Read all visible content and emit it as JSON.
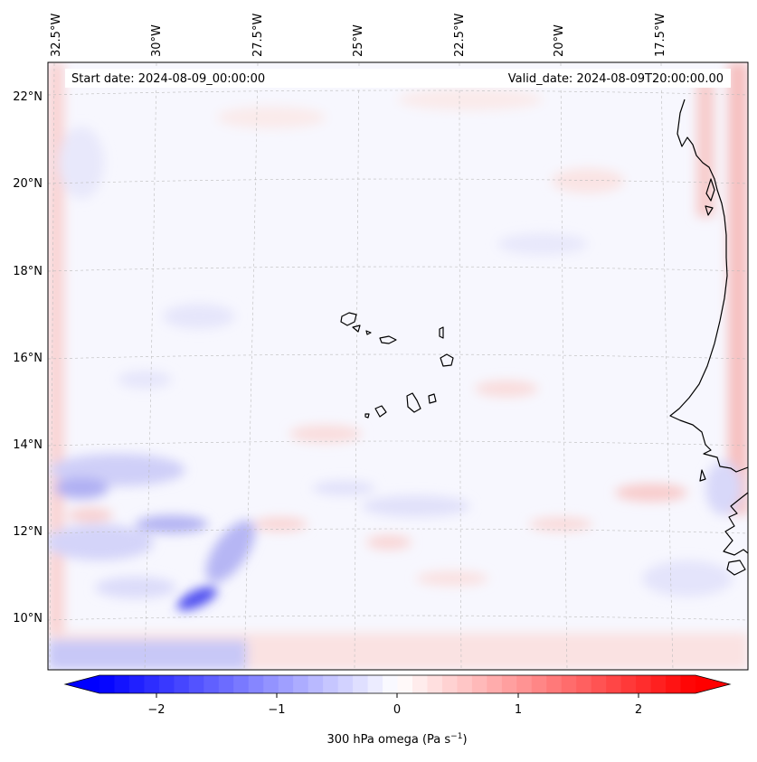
{
  "header": {
    "start_date": "Start date: 2024-08-09_00:00:00",
    "valid_date": "Valid_date: 2024-08-09T20:00:00.00"
  },
  "map": {
    "lon_labels": [
      "32.5°W",
      "30°W",
      "27.5°W",
      "25°W",
      "22.5°W",
      "20°W",
      "17.5°W"
    ],
    "lat_labels": [
      "22°N",
      "20°N",
      "18°N",
      "16°N",
      "14°N",
      "12°N",
      "10°N"
    ],
    "gridlines": true,
    "coastline_color": "#000000"
  },
  "colorbar": {
    "label": "300 hPa omega (Pa s",
    "label_superscript": "−1",
    "label_close": ")",
    "ticks": [
      "−2",
      "−1",
      "0",
      "1",
      "2"
    ],
    "range": [
      -2.6,
      2.6
    ],
    "cmap_low": "#0000ff",
    "cmap_mid": "#ffffff",
    "cmap_high": "#ff0000"
  }
}
